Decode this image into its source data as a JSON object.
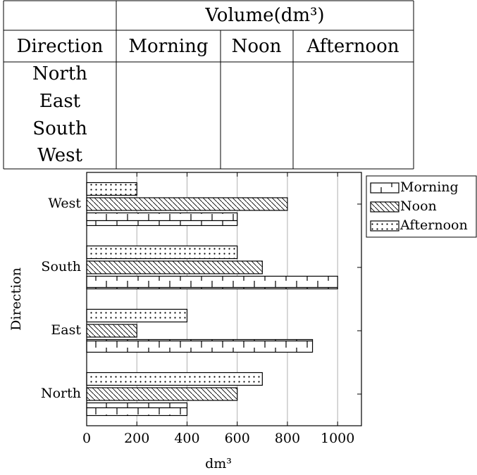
{
  "table": {
    "group_header": "Volume(dm³)",
    "columns": [
      "Direction",
      "Morning",
      "Noon",
      "Afternoon"
    ],
    "rows": [
      "North",
      "East",
      "South",
      "West"
    ]
  },
  "chart_data": {
    "type": "bar",
    "orientation": "horizontal",
    "categories": [
      "North",
      "East",
      "South",
      "West"
    ],
    "series": [
      {
        "name": "Morning",
        "color": "#000000",
        "pattern": "bricks",
        "values": [
          400,
          900,
          1000,
          600
        ]
      },
      {
        "name": "Noon",
        "color": "#000000",
        "pattern": "north-west-lines",
        "values": [
          600,
          200,
          700,
          800
        ]
      },
      {
        "name": "Afternoon",
        "color": "#000000",
        "pattern": "dots",
        "values": [
          700,
          400,
          600,
          200
        ]
      }
    ],
    "xlabel": "dm³",
    "ylabel": "Direction",
    "xlim": [
      0,
      1095
    ],
    "xticks": [
      0,
      200,
      400,
      600,
      800,
      1000
    ],
    "grid": true,
    "legend": "outside-upper-right"
  }
}
